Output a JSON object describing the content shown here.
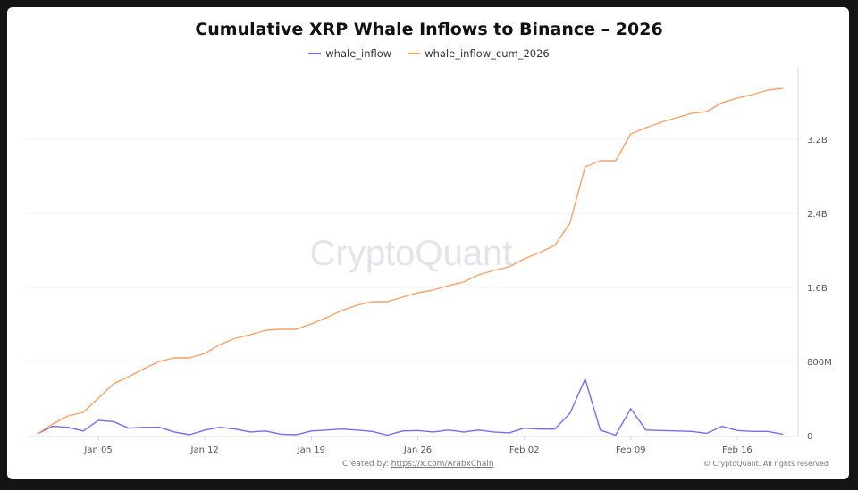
{
  "chart_data": {
    "type": "line",
    "title": "Cumulative XRP Whale Inflows to Binance – 2026",
    "legend_position": "top",
    "grid": true,
    "y_axis_side": "right",
    "y_unit": "millions",
    "ylim": [
      0,
      3900
    ],
    "y_ticks": [
      0,
      800,
      1600,
      2400,
      3200
    ],
    "y_tick_labels": [
      "0",
      "800M",
      "1.6B",
      "2.4B",
      "3.2B"
    ],
    "x_tick_labels": [
      "Jan 05",
      "Jan 12",
      "Jan 19",
      "Jan 26",
      "Feb 02",
      "Feb 09",
      "Feb 16"
    ],
    "x_tick_dates": [
      "2026-01-05",
      "2026-01-12",
      "2026-01-19",
      "2026-01-26",
      "2026-02-02",
      "2026-02-09",
      "2026-02-16"
    ],
    "x": [
      "2026-01-01",
      "2026-01-02",
      "2026-01-03",
      "2026-01-04",
      "2026-01-05",
      "2026-01-06",
      "2026-01-07",
      "2026-01-08",
      "2026-01-09",
      "2026-01-10",
      "2026-01-11",
      "2026-01-12",
      "2026-01-13",
      "2026-01-14",
      "2026-01-15",
      "2026-01-16",
      "2026-01-17",
      "2026-01-18",
      "2026-01-19",
      "2026-01-20",
      "2026-01-21",
      "2026-01-22",
      "2026-01-23",
      "2026-01-24",
      "2026-01-25",
      "2026-01-26",
      "2026-01-27",
      "2026-01-28",
      "2026-01-29",
      "2026-01-30",
      "2026-01-31",
      "2026-02-01",
      "2026-02-02",
      "2026-02-03",
      "2026-02-04",
      "2026-02-05",
      "2026-02-06",
      "2026-02-07",
      "2026-02-08",
      "2026-02-09",
      "2026-02-10",
      "2026-02-11",
      "2026-02-12",
      "2026-02-13",
      "2026-02-14",
      "2026-02-15",
      "2026-02-16",
      "2026-02-17",
      "2026-02-18",
      "2026-02-19"
    ],
    "series": [
      {
        "name": "whale_inflow",
        "color": "#7f66f5",
        "values": [
          20,
          100,
          90,
          50,
          165,
          150,
          80,
          90,
          90,
          40,
          10,
          60,
          90,
          70,
          40,
          50,
          15,
          10,
          50,
          60,
          70,
          60,
          45,
          5,
          50,
          55,
          40,
          60,
          40,
          60,
          40,
          30,
          80,
          70,
          70,
          240,
          610,
          60,
          5,
          290,
          60,
          55,
          50,
          45,
          25,
          100,
          55,
          45,
          45,
          15
        ]
      },
      {
        "name": "whale_inflow_cum_2026",
        "color": "#f7a164",
        "values": [
          19,
          125,
          212,
          251,
          405,
          559,
          636,
          723,
          800,
          839,
          839,
          887,
          983,
          1051,
          1089,
          1137,
          1147,
          1147,
          1205,
          1273,
          1350,
          1407,
          1446,
          1446,
          1494,
          1542,
          1571,
          1619,
          1658,
          1735,
          1783,
          1822,
          1908,
          1976,
          2053,
          2294,
          2901,
          2969,
          2969,
          3258,
          3325,
          3383,
          3431,
          3480,
          3499,
          3595,
          3644,
          3682,
          3730,
          3750
        ]
      }
    ],
    "watermark": "CryptoQuant"
  },
  "footer": {
    "created_by_label": "Created by:",
    "created_by_link": "https://x.com/ArabxChain",
    "copyright": "© CryptoQuant. All rights reserved"
  }
}
